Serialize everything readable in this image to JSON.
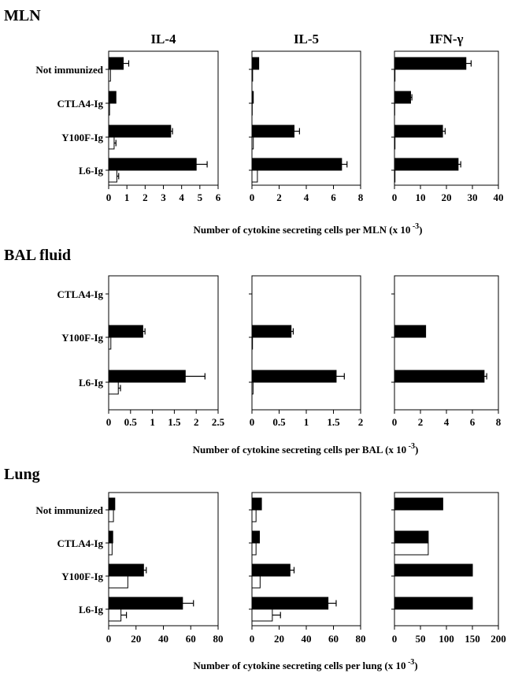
{
  "column_titles": [
    "IL-4",
    "IL-5",
    "IFN-γ"
  ],
  "chart_data": [
    {
      "type": "bar",
      "orientation": "horizontal",
      "section": "MLN",
      "categories": [
        "Not immunized",
        "CTLA4-Ig",
        "Y100F-Ig",
        "L6-Ig"
      ],
      "xlabel_parts": [
        "Number of cytokine secreting cells per MLN (x 10",
        " -3",
        ")"
      ],
      "panels": [
        {
          "title": "IL-4",
          "xlim": [
            0,
            6
          ],
          "ticks": [
            "0",
            "1",
            "2",
            "3",
            "4",
            "5",
            "6"
          ],
          "series": [
            {
              "fill": "#000000",
              "values": [
                0.8,
                0.4,
                3.4,
                4.8
              ],
              "errors": [
                0.3,
                0,
                0.1,
                0.6
              ]
            },
            {
              "fill": "#ffffff",
              "values": [
                0.1,
                0.05,
                0.3,
                0.45
              ],
              "errors": [
                0,
                0,
                0.1,
                0.1
              ]
            }
          ]
        },
        {
          "title": "IL-5",
          "xlim": [
            0,
            8
          ],
          "ticks": [
            "0",
            "2",
            "4",
            "6",
            "8"
          ],
          "series": [
            {
              "fill": "#000000",
              "values": [
                0.5,
                0.1,
                3.1,
                6.6
              ],
              "errors": [
                0,
                0,
                0.4,
                0.4
              ]
            },
            {
              "fill": "#ffffff",
              "values": [
                0.05,
                0.02,
                0.1,
                0.4
              ],
              "errors": [
                0,
                0,
                0,
                0
              ]
            }
          ]
        },
        {
          "title": "IFN-γ",
          "xlim": [
            0,
            40
          ],
          "ticks": [
            "0",
            "10",
            "20",
            "30",
            "40"
          ],
          "series": [
            {
              "fill": "#000000",
              "values": [
                27.5,
                6.2,
                18.5,
                24.5
              ],
              "errors": [
                2,
                0.5,
                1,
                1
              ]
            },
            {
              "fill": "#ffffff",
              "values": [
                0.2,
                0.1,
                0.2,
                0.2
              ],
              "errors": [
                0,
                0,
                0,
                0
              ]
            }
          ]
        }
      ]
    },
    {
      "type": "bar",
      "orientation": "horizontal",
      "section": "BAL fluid",
      "categories": [
        "CTLA4-Ig",
        "Y100F-Ig",
        "L6-Ig"
      ],
      "xlabel_parts": [
        "Number of cytokine secreting cells per BAL (x 10",
        " -3",
        ")"
      ],
      "panels": [
        {
          "title": "IL-4",
          "xlim": [
            0,
            2.5
          ],
          "ticks": [
            "0",
            "0.5",
            "1",
            "1.5",
            "2",
            "2.5"
          ],
          "series": [
            {
              "fill": "#000000",
              "values": [
                0,
                0.78,
                1.75
              ],
              "errors": [
                0,
                0.05,
                0.45
              ]
            },
            {
              "fill": "#ffffff",
              "values": [
                0,
                0.05,
                0.22
              ],
              "errors": [
                0,
                0,
                0.05
              ]
            }
          ]
        },
        {
          "title": "IL-5",
          "xlim": [
            0,
            2
          ],
          "ticks": [
            "0",
            "0.5",
            "1",
            "1.5",
            "2"
          ],
          "series": [
            {
              "fill": "#000000",
              "values": [
                0,
                0.72,
                1.55
              ],
              "errors": [
                0,
                0.04,
                0.15
              ]
            },
            {
              "fill": "#ffffff",
              "values": [
                0,
                0.01,
                0.02
              ],
              "errors": [
                0,
                0,
                0
              ]
            }
          ]
        },
        {
          "title": "IFN-γ",
          "xlim": [
            0,
            8
          ],
          "ticks": [
            "0",
            "2",
            "4",
            "6",
            "8"
          ],
          "series": [
            {
              "fill": "#000000",
              "values": [
                0,
                2.4,
                6.9
              ],
              "errors": [
                0,
                0,
                0.2
              ]
            },
            {
              "fill": "#ffffff",
              "values": [
                0,
                0,
                0
              ],
              "errors": [
                0,
                0,
                0
              ]
            }
          ]
        }
      ]
    },
    {
      "type": "bar",
      "orientation": "horizontal",
      "section": "Lung",
      "categories": [
        "Not immunized",
        "CTLA4-Ig",
        "Y100F-Ig",
        "L6-Ig"
      ],
      "xlabel_parts": [
        "Number of cytokine secreting cells per lung (x 10",
        " -3",
        ")"
      ],
      "panels": [
        {
          "title": "IL-4",
          "xlim": [
            0,
            80
          ],
          "ticks": [
            "0",
            "20",
            "40",
            "60",
            "80"
          ],
          "series": [
            {
              "fill": "#000000",
              "values": [
                4.5,
                3,
                25.5,
                54
              ],
              "errors": [
                0,
                0,
                2,
                8
              ]
            },
            {
              "fill": "#ffffff",
              "values": [
                3.5,
                2.5,
                14,
                9
              ],
              "errors": [
                0,
                0,
                0,
                4
              ]
            }
          ]
        },
        {
          "title": "IL-5",
          "xlim": [
            0,
            80
          ],
          "ticks": [
            "0",
            "20",
            "40",
            "60",
            "80"
          ],
          "series": [
            {
              "fill": "#000000",
              "values": [
                7,
                5.5,
                28,
                56
              ],
              "errors": [
                0,
                0,
                3,
                6
              ]
            },
            {
              "fill": "#ffffff",
              "values": [
                3,
                3,
                6,
                15
              ],
              "errors": [
                0,
                0,
                0,
                6
              ]
            }
          ]
        },
        {
          "title": "IFN-γ",
          "xlim": [
            0,
            200
          ],
          "ticks": [
            "0",
            "50",
            "100",
            "150",
            "200"
          ],
          "series": [
            {
              "fill": "#000000",
              "values": [
                93,
                65,
                150,
                150
              ],
              "errors": [
                0,
                0,
                0,
                0
              ]
            },
            {
              "fill": "#ffffff",
              "values": [
                0,
                65,
                0,
                0
              ],
              "errors": [
                0,
                0,
                0,
                0
              ]
            }
          ]
        }
      ]
    }
  ]
}
